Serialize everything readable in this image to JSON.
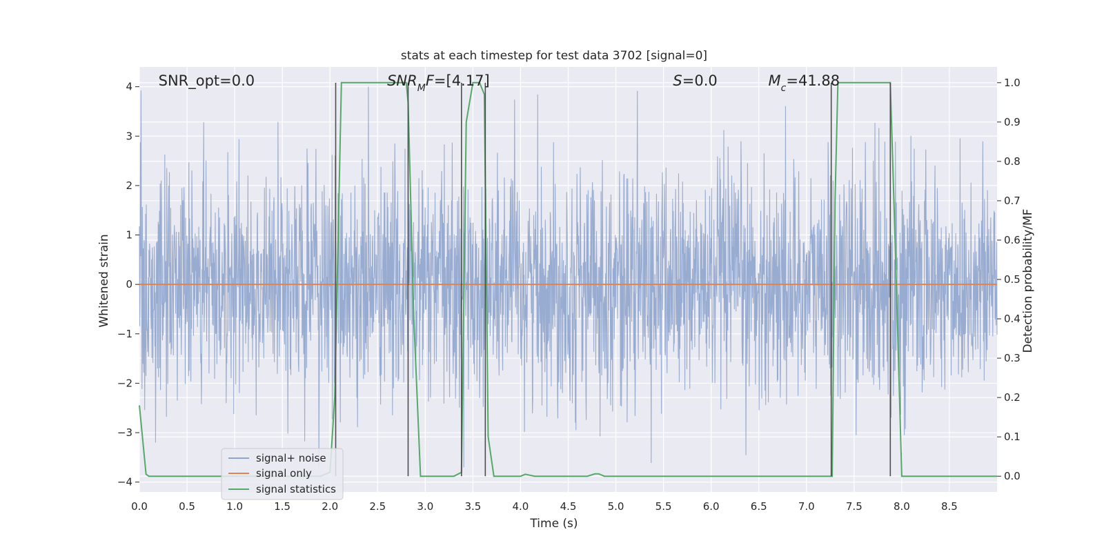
{
  "chart_data": {
    "type": "line",
    "title": "stats at each timestep for test data 3702 [signal=0]",
    "xlabel": "Time (s)",
    "ylabel": "Whitened strain",
    "y2label": "Detection probability/MF",
    "xlim": [
      0.0,
      9.0
    ],
    "ylim": [
      -4.2,
      4.4
    ],
    "y2lim": [
      -0.04,
      1.04
    ],
    "x_ticks": [
      "0.0",
      "0.5",
      "1.0",
      "1.5",
      "2.0",
      "2.5",
      "3.0",
      "3.5",
      "4.0",
      "4.5",
      "5.0",
      "5.5",
      "6.0",
      "6.5",
      "7.0",
      "7.5",
      "8.0",
      "8.5"
    ],
    "y_ticks": [
      "4",
      "3",
      "2",
      "1",
      "0",
      "−1",
      "−2",
      "−3",
      "−4"
    ],
    "y2_ticks": [
      "1.0",
      "0.9",
      "0.8",
      "0.7",
      "0.6",
      "0.5",
      "0.4",
      "0.3",
      "0.2",
      "0.1",
      "0.0"
    ],
    "grid": true,
    "legend_position": "lower-left",
    "annotations": [
      {
        "text": "SNR_opt=0.0",
        "x": 0.2
      },
      {
        "text": "SNR_MF=[4.17]",
        "x": 2.6
      },
      {
        "text": "S=0.0",
        "x": 5.6
      },
      {
        "text": "M_c=41.88",
        "x": 6.6
      }
    ],
    "series": [
      {
        "name": "signal+ noise",
        "color": "#8fa4cc",
        "kind": "noise",
        "amplitude_std": 1.15,
        "y_range": [
          -3.7,
          4.0
        ]
      },
      {
        "name": "signal only",
        "color": "#dd8452",
        "kind": "line",
        "x": [
          0.0,
          9.0
        ],
        "y": [
          0.0,
          0.0
        ]
      },
      {
        "name": "signal statistics",
        "color": "#55a868",
        "kind": "line",
        "axis": "y2",
        "x": [
          0.0,
          0.07,
          0.1,
          1.9,
          2.0,
          2.05,
          2.12,
          2.8,
          2.82,
          2.88,
          2.95,
          3.3,
          3.38,
          3.43,
          3.5,
          3.57,
          3.62,
          3.66,
          3.72,
          3.76,
          3.85,
          4.0,
          4.05,
          4.15,
          4.7,
          4.78,
          4.82,
          4.88,
          7.27,
          7.3,
          7.33,
          7.85,
          7.88,
          7.93,
          8.0,
          9.0
        ],
        "y": [
          0.18,
          0.005,
          0.0,
          0.0,
          0.01,
          0.2,
          1.0,
          1.0,
          0.95,
          0.4,
          0.0,
          0.0,
          0.01,
          0.9,
          1.0,
          1.0,
          0.97,
          0.1,
          0.0,
          0.0,
          0.0,
          0.0,
          0.005,
          0.0,
          0.0,
          0.006,
          0.006,
          0.0,
          0.0,
          0.7,
          1.0,
          1.0,
          1.0,
          0.6,
          0.0,
          0.0
        ]
      }
    ],
    "vertical_markers": [
      {
        "x": 2.06,
        "y2_top": 1.0
      },
      {
        "x": 2.82,
        "y2_top": 1.0
      },
      {
        "x": 3.38,
        "y2_top": 1.0
      },
      {
        "x": 3.63,
        "y2_top": 1.0
      },
      {
        "x": 7.26,
        "y2_top": 1.0
      },
      {
        "x": 7.88,
        "y2_top": 1.0
      }
    ],
    "colors": {
      "plot_background": "#eaeaf2",
      "grid": "#ffffff",
      "marker": "#4d4d4d"
    }
  }
}
